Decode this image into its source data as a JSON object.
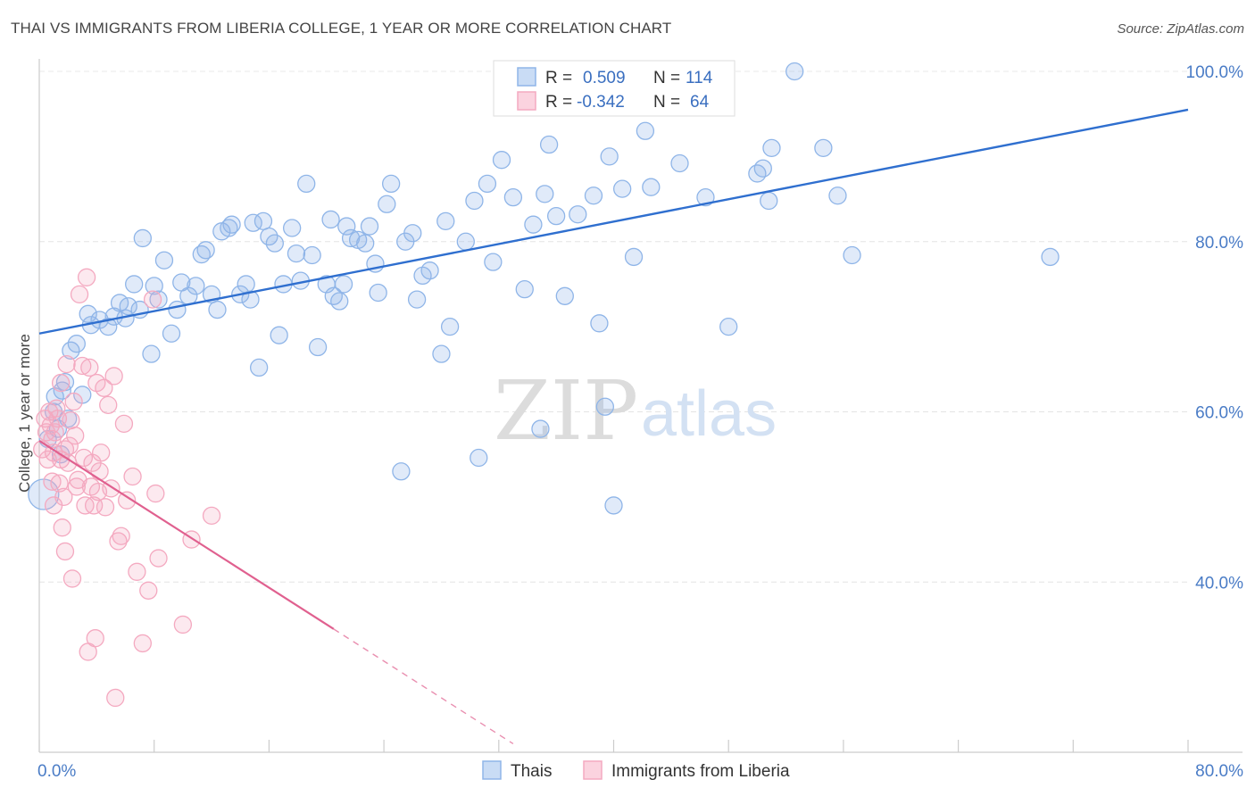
{
  "title": "THAI VS IMMIGRANTS FROM LIBERIA COLLEGE, 1 YEAR OR MORE CORRELATION CHART",
  "source": "Source: ZipAtlas.com",
  "watermark": {
    "zip": "ZIP",
    "atlas": "atlas"
  },
  "legend_top": {
    "r_label": "R =",
    "n_label": "N =",
    "rows": [
      {
        "r": "0.509",
        "n": "114",
        "color": "#8fb5e8"
      },
      {
        "r": "-0.342",
        "n": "64",
        "color": "#f4a9c0"
      }
    ]
  },
  "legend_bottom": [
    {
      "label": "Thais",
      "color": "#8fb5e8"
    },
    {
      "label": "Immigrants from Liberia",
      "color": "#f4a9c0"
    }
  ],
  "chart_data": {
    "type": "scatter",
    "title": "THAI VS IMMIGRANTS FROM LIBERIA COLLEGE, 1 YEAR OR MORE CORRELATION CHART",
    "xlabel": "",
    "ylabel": "College, 1 year or more",
    "xlim": [
      0,
      80
    ],
    "ylim": [
      20,
      100
    ],
    "x_tick_labels": [
      "0.0%",
      "80.0%"
    ],
    "y_ticks": [
      40,
      60,
      80,
      100
    ],
    "y_tick_labels": [
      "40.0%",
      "60.0%",
      "80.0%",
      "100.0%"
    ],
    "grid": true,
    "legend_position": "top-center",
    "series": [
      {
        "name": "Thais",
        "color": "#8fb5e8",
        "line_color": "#2f6fcf",
        "r": 0.509,
        "n": 114,
        "trend": {
          "x0": 0,
          "y0": 69.2,
          "x1": 80,
          "y1": 95.5,
          "dashed_from": null
        },
        "points": [
          [
            0.3,
            50.3
          ],
          [
            1.0,
            60.0
          ],
          [
            1.3,
            58.0
          ],
          [
            1.5,
            55.0
          ],
          [
            1.6,
            62.5
          ],
          [
            1.8,
            63.5
          ],
          [
            2.2,
            67.2
          ],
          [
            2.6,
            68.0
          ],
          [
            3.0,
            62.0
          ],
          [
            3.4,
            71.5
          ],
          [
            3.6,
            70.2
          ],
          [
            4.2,
            70.8
          ],
          [
            4.8,
            70.0
          ],
          [
            5.2,
            71.2
          ],
          [
            5.6,
            72.8
          ],
          [
            6.0,
            71.0
          ],
          [
            6.2,
            72.4
          ],
          [
            6.6,
            75.0
          ],
          [
            7.0,
            72.0
          ],
          [
            7.2,
            80.4
          ],
          [
            7.8,
            66.8
          ],
          [
            8.0,
            74.8
          ],
          [
            8.3,
            73.2
          ],
          [
            8.7,
            77.8
          ],
          [
            9.2,
            69.2
          ],
          [
            9.6,
            72.0
          ],
          [
            9.9,
            75.2
          ],
          [
            10.4,
            73.6
          ],
          [
            10.9,
            74.8
          ],
          [
            11.3,
            78.5
          ],
          [
            11.6,
            79.0
          ],
          [
            12.0,
            73.8
          ],
          [
            12.4,
            72.0
          ],
          [
            12.7,
            81.2
          ],
          [
            13.2,
            81.6
          ],
          [
            13.4,
            82.0
          ],
          [
            14.0,
            73.8
          ],
          [
            14.4,
            75.0
          ],
          [
            14.7,
            73.2
          ],
          [
            14.9,
            82.2
          ],
          [
            15.3,
            65.2
          ],
          [
            15.6,
            82.4
          ],
          [
            16.0,
            80.6
          ],
          [
            16.4,
            79.8
          ],
          [
            16.7,
            69.0
          ],
          [
            17.0,
            75.0
          ],
          [
            17.6,
            81.6
          ],
          [
            17.9,
            78.6
          ],
          [
            18.2,
            75.4
          ],
          [
            18.6,
            86.8
          ],
          [
            19.0,
            78.4
          ],
          [
            19.4,
            67.6
          ],
          [
            20.0,
            75.0
          ],
          [
            20.3,
            82.6
          ],
          [
            20.5,
            73.6
          ],
          [
            20.9,
            73.0
          ],
          [
            21.2,
            75.0
          ],
          [
            21.4,
            81.8
          ],
          [
            21.7,
            80.4
          ],
          [
            22.2,
            80.2
          ],
          [
            22.7,
            79.8
          ],
          [
            23.0,
            81.8
          ],
          [
            23.4,
            77.4
          ],
          [
            23.6,
            74.0
          ],
          [
            24.2,
            84.4
          ],
          [
            24.5,
            86.8
          ],
          [
            25.2,
            53.0
          ],
          [
            25.5,
            80.0
          ],
          [
            26.0,
            81.0
          ],
          [
            26.3,
            73.2
          ],
          [
            26.7,
            76.0
          ],
          [
            27.2,
            76.6
          ],
          [
            28.0,
            66.8
          ],
          [
            28.3,
            82.4
          ],
          [
            28.6,
            70.0
          ],
          [
            29.7,
            80.0
          ],
          [
            30.3,
            84.8
          ],
          [
            30.6,
            54.6
          ],
          [
            31.2,
            86.8
          ],
          [
            31.6,
            77.6
          ],
          [
            32.2,
            89.6
          ],
          [
            33.0,
            85.2
          ],
          [
            33.8,
            74.4
          ],
          [
            34.4,
            82.0
          ],
          [
            34.9,
            58.0
          ],
          [
            35.2,
            85.6
          ],
          [
            35.5,
            91.4
          ],
          [
            36.0,
            83.0
          ],
          [
            36.6,
            73.6
          ],
          [
            37.5,
            83.2
          ],
          [
            38.6,
            85.4
          ],
          [
            39.0,
            70.4
          ],
          [
            39.4,
            60.6
          ],
          [
            39.7,
            90.0
          ],
          [
            40.0,
            49.0
          ],
          [
            40.6,
            86.2
          ],
          [
            41.4,
            78.2
          ],
          [
            42.2,
            93.0
          ],
          [
            42.6,
            86.4
          ],
          [
            44.6,
            89.2
          ],
          [
            46.4,
            85.2
          ],
          [
            48.0,
            70.0
          ],
          [
            50.0,
            88.0
          ],
          [
            50.4,
            88.6
          ],
          [
            50.8,
            84.8
          ],
          [
            51.0,
            91.0
          ],
          [
            52.6,
            100.0
          ],
          [
            54.6,
            91.0
          ],
          [
            55.6,
            85.4
          ],
          [
            56.6,
            78.4
          ],
          [
            70.4,
            78.2
          ],
          [
            0.6,
            56.8
          ],
          [
            2.0,
            59.2
          ],
          [
            1.1,
            61.8
          ]
        ]
      },
      {
        "name": "Immigrants from Liberia",
        "color": "#f4a9c0",
        "line_color": "#e0608f",
        "r": -0.342,
        "n": 64,
        "trend": {
          "x0": 0,
          "y0": 56.6,
          "x1": 33,
          "y1": 21.0,
          "dashed_from": 20.5
        },
        "points": [
          [
            0.2,
            55.6
          ],
          [
            0.4,
            59.2
          ],
          [
            0.5,
            57.6
          ],
          [
            0.6,
            54.4
          ],
          [
            0.7,
            60.0
          ],
          [
            0.8,
            58.4
          ],
          [
            0.9,
            56.8
          ],
          [
            1.0,
            55.2
          ],
          [
            1.0,
            49.0
          ],
          [
            1.1,
            57.6
          ],
          [
            1.2,
            60.4
          ],
          [
            1.3,
            59.2
          ],
          [
            1.4,
            51.6
          ],
          [
            1.5,
            54.4
          ],
          [
            1.6,
            46.4
          ],
          [
            1.7,
            50.0
          ],
          [
            1.8,
            43.6
          ],
          [
            1.8,
            55.6
          ],
          [
            1.9,
            65.6
          ],
          [
            2.0,
            54.0
          ],
          [
            2.1,
            56.0
          ],
          [
            2.2,
            59.0
          ],
          [
            2.3,
            40.4
          ],
          [
            2.4,
            61.2
          ],
          [
            2.6,
            51.2
          ],
          [
            2.7,
            52.0
          ],
          [
            2.8,
            73.8
          ],
          [
            3.0,
            65.4
          ],
          [
            3.1,
            54.6
          ],
          [
            3.2,
            49.0
          ],
          [
            3.3,
            75.8
          ],
          [
            3.4,
            31.8
          ],
          [
            3.5,
            65.2
          ],
          [
            3.6,
            51.2
          ],
          [
            3.7,
            54.0
          ],
          [
            3.8,
            49.0
          ],
          [
            3.9,
            33.4
          ],
          [
            4.0,
            63.4
          ],
          [
            4.1,
            50.6
          ],
          [
            4.2,
            53.0
          ],
          [
            4.3,
            55.2
          ],
          [
            4.5,
            62.8
          ],
          [
            4.6,
            48.8
          ],
          [
            4.8,
            60.8
          ],
          [
            5.0,
            51.0
          ],
          [
            5.2,
            64.2
          ],
          [
            5.3,
            26.4
          ],
          [
            5.5,
            44.8
          ],
          [
            5.7,
            45.4
          ],
          [
            5.9,
            58.6
          ],
          [
            6.1,
            49.6
          ],
          [
            6.5,
            52.4
          ],
          [
            6.8,
            41.2
          ],
          [
            7.2,
            32.8
          ],
          [
            7.6,
            39.0
          ],
          [
            7.9,
            73.2
          ],
          [
            8.1,
            50.4
          ],
          [
            8.3,
            42.8
          ],
          [
            10.0,
            35.0
          ],
          [
            10.6,
            45.0
          ],
          [
            12.0,
            47.8
          ],
          [
            0.9,
            51.8
          ],
          [
            1.5,
            63.4
          ],
          [
            2.5,
            57.2
          ]
        ]
      }
    ]
  }
}
